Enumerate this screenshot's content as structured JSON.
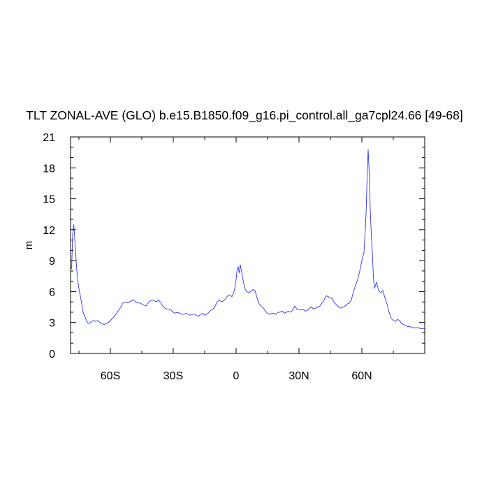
{
  "chart_data": {
    "type": "line",
    "title": "TLT ZONAL-AVE (GLO) b.e15.B1850.f09_g16.pi_control.all_ga7cpl24.66 [49-68]",
    "xlabel": "",
    "ylabel": "m",
    "xlim": [
      -79,
      90
    ],
    "ylim": [
      0,
      21
    ],
    "x_ticks": [
      {
        "value": -60,
        "label": "60S"
      },
      {
        "value": -30,
        "label": "30S"
      },
      {
        "value": 0,
        "label": "0"
      },
      {
        "value": 30,
        "label": "30N"
      },
      {
        "value": 60,
        "label": "60N"
      }
    ],
    "x_minor_ticks": [
      -75,
      -45,
      -15,
      15,
      45,
      75
    ],
    "y_ticks": [
      0,
      3,
      6,
      9,
      12,
      15,
      18,
      21
    ],
    "y_minor_ticks": [
      1,
      2,
      4,
      5,
      7,
      8,
      10,
      11,
      13,
      14,
      16,
      17,
      19,
      20
    ],
    "series_color": "#3333ee",
    "series": [
      {
        "x": [
          -78.5,
          -78,
          -77.5,
          -77,
          -76.5,
          -76,
          -75.5,
          -75,
          -74,
          -73,
          -72,
          -71,
          -70,
          -69,
          -68,
          -67,
          -66,
          -65,
          -64,
          -63,
          -62,
          -61,
          -60,
          -59,
          -58,
          -57,
          -56,
          -55,
          -54,
          -53,
          -52,
          -51,
          -50,
          -49,
          -48,
          -47,
          -46,
          -45,
          -44,
          -43,
          -42,
          -41,
          -40,
          -39,
          -38,
          -37,
          -36,
          -35,
          -34,
          -33,
          -32,
          -31,
          -30,
          -29,
          -28,
          -27,
          -26,
          -25,
          -24,
          -23,
          -22,
          -21,
          -20,
          -19,
          -18,
          -17,
          -16,
          -15,
          -14,
          -13,
          -12,
          -11,
          -10,
          -9,
          -8,
          -7,
          -6,
          -5,
          -4,
          -3,
          -2,
          -1,
          -0.5,
          0,
          0.5,
          1,
          1.5,
          2,
          3,
          4,
          5,
          6,
          7,
          8,
          9,
          10,
          11,
          12,
          13,
          14,
          15,
          16,
          17,
          18,
          19,
          20,
          21,
          22,
          23,
          24,
          25,
          26,
          27,
          28,
          29,
          30,
          31,
          32,
          33,
          34,
          35,
          36,
          37,
          38,
          39,
          40,
          41,
          42,
          43,
          44,
          45,
          46,
          47,
          48,
          49,
          50,
          51,
          52,
          53,
          54,
          55,
          56,
          57,
          58,
          59,
          60,
          61,
          61.5,
          62,
          62.5,
          63,
          63.5,
          64,
          64.5,
          65,
          65.5,
          66,
          67,
          68,
          69,
          70,
          71,
          72,
          73,
          74,
          75,
          76,
          77,
          78,
          79,
          80,
          81,
          82,
          83,
          84,
          85,
          86,
          87,
          88,
          89,
          90
        ],
        "values": [
          8.2,
          11.5,
          12.5,
          11.2,
          9.5,
          8.0,
          7.0,
          6.3,
          5.2,
          4.0,
          3.5,
          3.0,
          2.9,
          3.1,
          3.2,
          3.1,
          3.2,
          3.0,
          2.9,
          2.8,
          2.9,
          3.0,
          3.2,
          3.4,
          3.6,
          3.9,
          4.2,
          4.5,
          4.9,
          5.0,
          4.9,
          5.0,
          5.1,
          5.2,
          5.0,
          4.9,
          4.9,
          4.8,
          4.7,
          4.6,
          4.9,
          5.1,
          5.2,
          5.1,
          5.0,
          5.2,
          4.9,
          4.6,
          4.4,
          4.3,
          4.3,
          4.2,
          4.0,
          3.9,
          4.0,
          3.9,
          3.8,
          3.8,
          3.9,
          3.8,
          3.7,
          3.8,
          3.8,
          3.7,
          3.6,
          3.8,
          3.9,
          3.7,
          3.8,
          4.0,
          4.2,
          4.3,
          4.6,
          5.0,
          5.2,
          5.0,
          5.1,
          5.3,
          5.6,
          5.7,
          5.5,
          6.0,
          6.5,
          7.2,
          8.2,
          8.4,
          7.8,
          8.6,
          7.5,
          6.4,
          6.0,
          5.9,
          6.0,
          6.2,
          6.1,
          5.4,
          4.8,
          4.6,
          4.4,
          4.1,
          3.9,
          3.8,
          3.9,
          3.9,
          3.8,
          4.0,
          4.0,
          4.1,
          3.9,
          4.0,
          4.1,
          4.0,
          4.2,
          4.6,
          4.3,
          4.3,
          4.2,
          4.3,
          4.1,
          4.2,
          4.4,
          4.5,
          4.3,
          4.4,
          4.5,
          4.6,
          4.9,
          5.2,
          5.6,
          5.5,
          5.4,
          5.3,
          4.9,
          4.7,
          4.5,
          4.4,
          4.5,
          4.6,
          4.8,
          4.9,
          5.2,
          6.0,
          6.6,
          7.2,
          8.0,
          9.0,
          9.8,
          11.5,
          13.5,
          17.0,
          19.8,
          17.5,
          14.0,
          11.5,
          9.8,
          7.5,
          6.3,
          6.9,
          6.1,
          5.9,
          6.1,
          5.4,
          4.8,
          4.0,
          3.4,
          3.2,
          3.1,
          3.3,
          3.2,
          2.9,
          2.8,
          2.7,
          2.6,
          2.6,
          2.5,
          2.5,
          2.5,
          2.5,
          2.4,
          2.4,
          2.4
        ]
      }
    ]
  }
}
